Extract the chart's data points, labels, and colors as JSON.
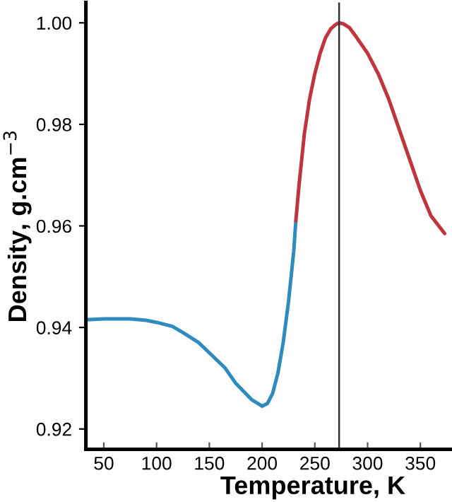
{
  "chart_data": {
    "type": "line",
    "xlabel": "Temperature, K",
    "ylabel": "Density, g.cm$^{−3}$",
    "xlim": [
      33,
      380
    ],
    "ylim": [
      0.916,
      1.004
    ],
    "xticks": [
      50,
      100,
      150,
      200,
      250,
      300,
      350
    ],
    "yticks": [
      {
        "value": 0.92,
        "label": "0.92"
      },
      {
        "value": 0.94,
        "label": "0.94"
      },
      {
        "value": 0.96,
        "label": "0.96"
      },
      {
        "value": 0.98,
        "label": "0.98"
      },
      {
        "value": 1.0,
        "label": "1.00"
      }
    ],
    "grid": false,
    "legend": false,
    "marker": "none",
    "line_style": "solid",
    "series": [
      {
        "color": "#2e8bc0",
        "x": [
          33,
          50,
          75,
          90,
          100,
          115,
          125,
          140,
          150,
          165,
          175,
          190,
          200,
          205,
          210,
          215,
          220,
          225,
          230,
          232
        ],
        "values": [
          0.9415,
          0.9417,
          0.9417,
          0.9414,
          0.941,
          0.9402,
          0.939,
          0.937,
          0.935,
          0.932,
          0.929,
          0.9258,
          0.9245,
          0.925,
          0.927,
          0.931,
          0.937,
          0.945,
          0.955,
          0.961
        ]
      },
      {
        "color": "#c0343c",
        "x": [
          232,
          235,
          240,
          245,
          250,
          255,
          260,
          265,
          270,
          273,
          277,
          283,
          290,
          300,
          310,
          320,
          330,
          340,
          350,
          360,
          373
        ],
        "values": [
          0.961,
          0.968,
          0.978,
          0.985,
          0.99,
          0.994,
          0.997,
          0.9988,
          0.9997,
          1.0,
          0.9998,
          0.999,
          0.997,
          0.994,
          0.99,
          0.985,
          0.979,
          0.973,
          0.967,
          0.962,
          0.9585
        ]
      }
    ],
    "ref_lines": [
      {
        "axis": "x",
        "value": 273,
        "color": "#333333"
      }
    ]
  }
}
